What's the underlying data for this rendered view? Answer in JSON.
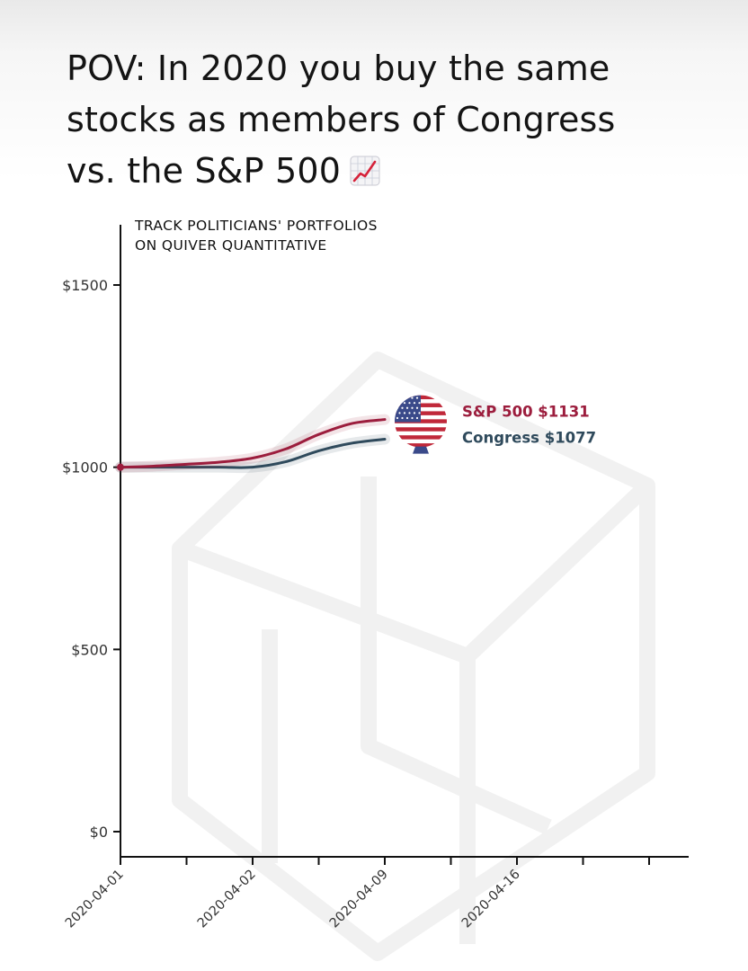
{
  "headline": {
    "line1": "POV: In 2020 you buy the same",
    "line2": "stocks as members of Congress",
    "line3": "vs. the S&P 500",
    "emoji": "chart-increasing-icon"
  },
  "chart_data": {
    "type": "line",
    "banner": [
      "TRACK POLITICIANS' PORTFOLIOS",
      "ON QUIVER QUANTITATIVE"
    ],
    "y_ticks": [
      {
        "value": 0,
        "label": "$0"
      },
      {
        "value": 500,
        "label": "$500"
      },
      {
        "value": 1000,
        "label": "$1000"
      },
      {
        "value": 1500,
        "label": "$1500"
      }
    ],
    "ylim": [
      0,
      1600
    ],
    "x_labels": [
      "2020-04-01",
      "2020-04-02",
      "2020-04-09",
      "2020-04-16"
    ],
    "x_label_ticks": [
      0,
      2,
      4,
      6
    ],
    "x_tick_count": 9,
    "x_max": 8.5,
    "grid": false,
    "series": [
      {
        "name": "Congress",
        "label": "Congress $1077",
        "color": "#2f4a5c",
        "points": [
          [
            0,
            1000
          ],
          [
            0.5,
            1000
          ],
          [
            1,
            1000
          ],
          [
            1.5,
            1000
          ],
          [
            2,
            1000
          ],
          [
            2.5,
            1015
          ],
          [
            3,
            1045
          ],
          [
            3.5,
            1066
          ],
          [
            4,
            1077
          ]
        ]
      },
      {
        "name": "S&P 500",
        "label": "S&P 500 $1131",
        "color": "#9c1d3d",
        "points": [
          [
            0,
            1000
          ],
          [
            0.5,
            1003
          ],
          [
            1,
            1008
          ],
          [
            1.5,
            1014
          ],
          [
            2,
            1025
          ],
          [
            2.5,
            1050
          ],
          [
            3,
            1090
          ],
          [
            3.5,
            1120
          ],
          [
            4,
            1131
          ]
        ]
      }
    ],
    "end_marker": "us-flag-icon"
  }
}
